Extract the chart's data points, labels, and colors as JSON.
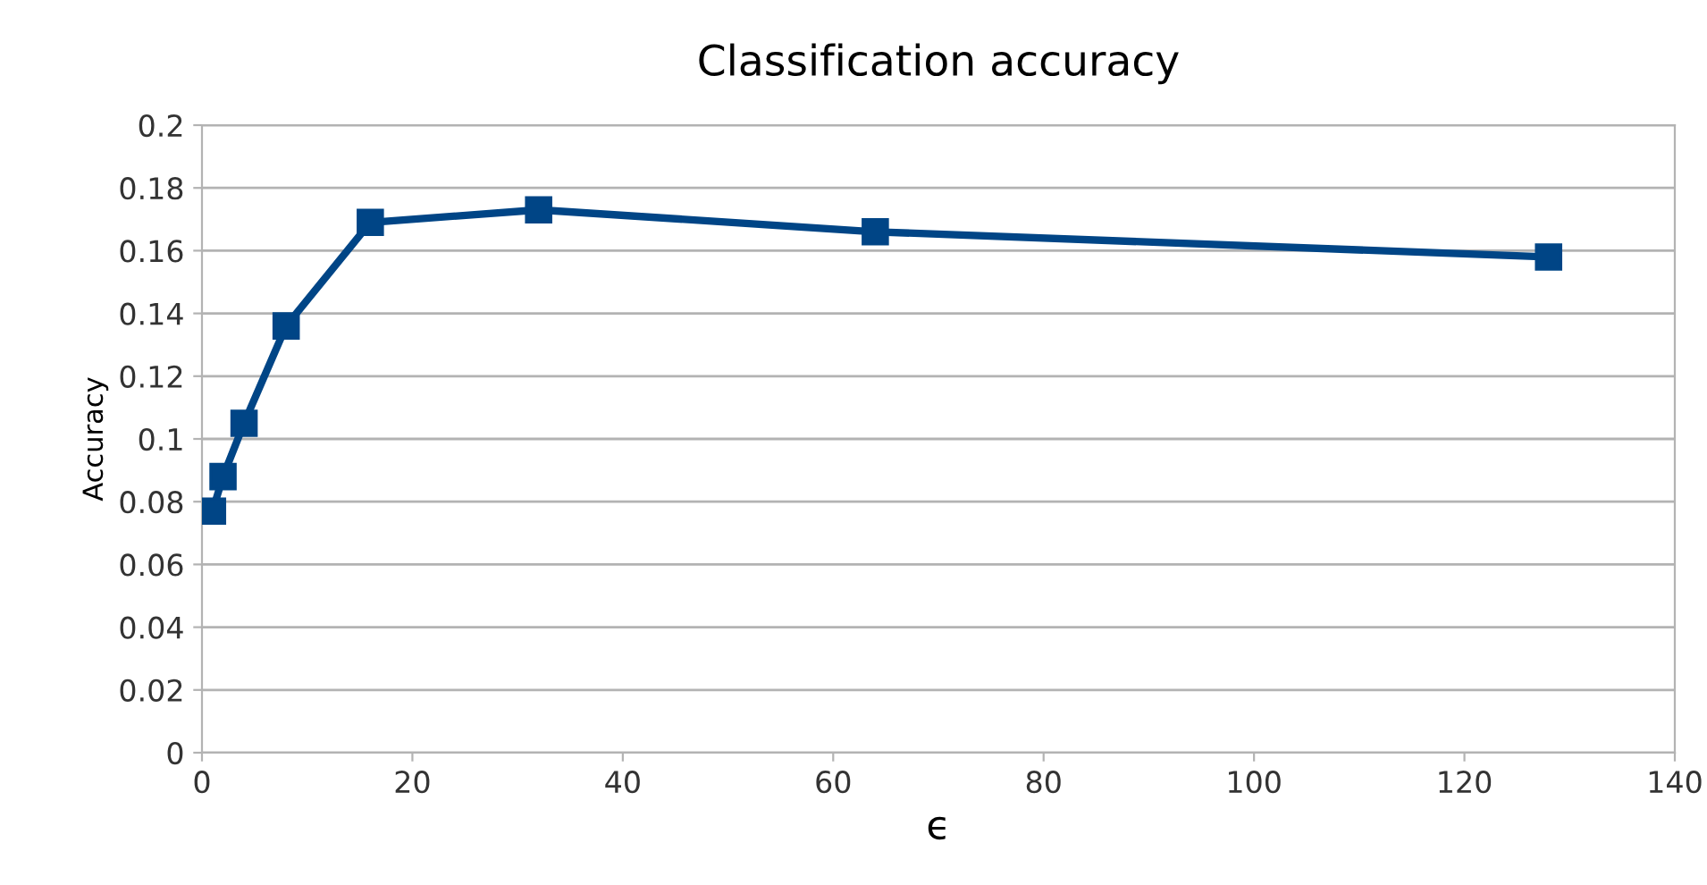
{
  "chart_data": {
    "type": "line",
    "title": "Classification accuracy",
    "xlabel": "ϵ",
    "ylabel": "Accuracy",
    "x": [
      1,
      2,
      4,
      8,
      16,
      32,
      64,
      128
    ],
    "series": [
      {
        "color": "#004586",
        "values": [
          0.077,
          0.088,
          0.105,
          0.136,
          0.169,
          0.173,
          0.166,
          0.158
        ]
      }
    ],
    "xlim": [
      0,
      140
    ],
    "xticks": [
      0,
      20,
      40,
      60,
      80,
      100,
      120,
      140
    ],
    "ylim": [
      0,
      0.2
    ],
    "yticks": [
      0,
      0.02,
      0.04,
      0.06,
      0.08,
      0.1,
      0.12,
      0.14,
      0.16,
      0.18,
      0.2
    ],
    "grid": "y",
    "marker": "square",
    "line_style": "solid"
  }
}
